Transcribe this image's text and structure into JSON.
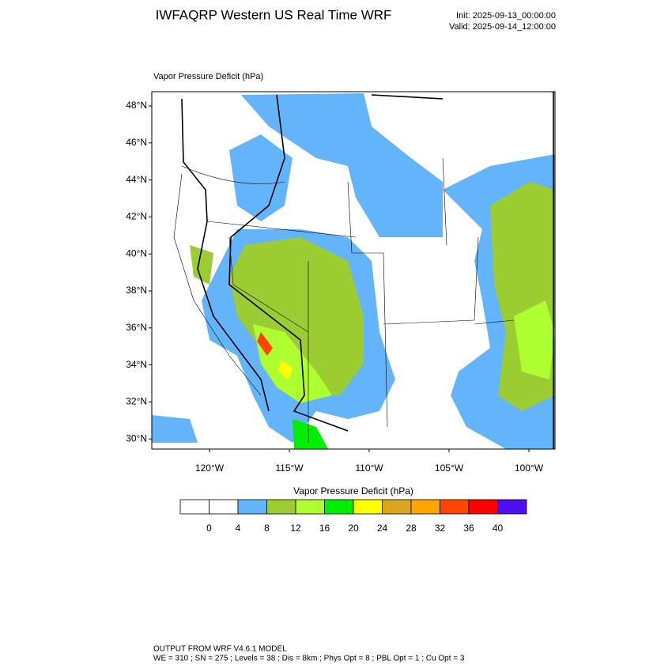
{
  "header": {
    "title": "IWFAQRP Western US Real Time WRF",
    "init": "Init: 2025-09-13_00:00:00",
    "valid": "Valid: 2025-09-14_12:00:00"
  },
  "map": {
    "label": "Vapor Pressure Deficit   (hPa)",
    "lat_labels": [
      "48°N",
      "46°N",
      "44°N",
      "42°N",
      "40°N",
      "38°N",
      "36°N",
      "34°N",
      "32°N",
      "30°N"
    ],
    "lon_labels": [
      "120°W",
      "115°W",
      "110°W",
      "105°W",
      "100°W"
    ]
  },
  "colorbar": {
    "title": "Vapor Pressure Deficit  (hPa)",
    "colors": [
      "#ffffff",
      "#ffffff",
      "#63b4fa",
      "#9bcd32",
      "#adff2f",
      "#00ee00",
      "#ffff00",
      "#daa520",
      "#ffa500",
      "#ff4500",
      "#ff0000",
      "#4b0ff0"
    ],
    "labels": [
      "0",
      "4",
      "8",
      "12",
      "16",
      "20",
      "24",
      "28",
      "32",
      "36",
      "40"
    ]
  },
  "footer": {
    "line1": "OUTPUT FROM WRF V4.6.1 MODEL",
    "line2": "WE = 310 ; SN = 275 ; Levels = 38 ; Dis = 8km ; Phys Opt = 8 ; PBL Opt = 1 ; Cu Opt = 3"
  }
}
